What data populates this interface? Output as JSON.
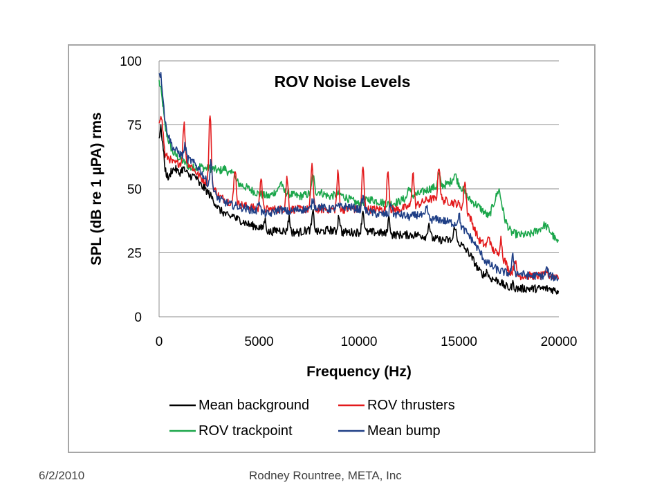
{
  "footer": {
    "date": "6/2/2010",
    "author": "Rodney Rountree,  META, Inc"
  },
  "colors": {
    "mean_background": "#000000",
    "rov_thrusters": "#e31a1c",
    "rov_trackpoint": "#1aa64a",
    "mean_bump": "#1f3f86",
    "gridline": "#8c8c8c",
    "frame": "#a6a6a6"
  },
  "chart_data": {
    "type": "line",
    "title": "ROV Noise Levels",
    "xlabel": "Frequency (Hz)",
    "ylabel": "SPL (dB re 1 µPA) rms",
    "xlim": [
      0,
      20000
    ],
    "ylim": [
      0,
      100
    ],
    "x_ticks": [
      0,
      5000,
      10000,
      15000,
      20000
    ],
    "y_ticks": [
      0,
      25,
      50,
      75,
      100
    ],
    "grid": "horizontal",
    "legend_position": "bottom",
    "series": [
      {
        "name": "Mean background",
        "color": "#000000",
        "points": [
          [
            0,
            70
          ],
          [
            100,
            74
          ],
          [
            200,
            66
          ],
          [
            300,
            58
          ],
          [
            400,
            55
          ],
          [
            500,
            54
          ],
          [
            600,
            57
          ],
          [
            800,
            58
          ],
          [
            1000,
            56
          ],
          [
            1200,
            58
          ],
          [
            1500,
            55
          ],
          [
            1800,
            55
          ],
          [
            2000,
            52
          ],
          [
            2300,
            50
          ],
          [
            2600,
            47
          ],
          [
            3000,
            42
          ],
          [
            3500,
            39
          ],
          [
            4000,
            38
          ],
          [
            4500,
            36
          ],
          [
            5000,
            35
          ],
          [
            5500,
            33
          ],
          [
            6000,
            34
          ],
          [
            6500,
            33
          ],
          [
            7000,
            33
          ],
          [
            7500,
            34
          ],
          [
            8000,
            33
          ],
          [
            8500,
            34
          ],
          [
            9000,
            33
          ],
          [
            9500,
            33
          ],
          [
            10000,
            33
          ],
          [
            10500,
            33
          ],
          [
            11000,
            33
          ],
          [
            11500,
            32
          ],
          [
            12000,
            32
          ],
          [
            12500,
            32
          ],
          [
            13000,
            32
          ],
          [
            13500,
            31
          ],
          [
            14000,
            30
          ],
          [
            14500,
            30
          ],
          [
            15000,
            29
          ],
          [
            15500,
            25
          ],
          [
            15800,
            21
          ],
          [
            16000,
            18
          ],
          [
            16300,
            16
          ],
          [
            16600,
            15
          ],
          [
            17000,
            14
          ],
          [
            17300,
            12
          ],
          [
            17600,
            11
          ],
          [
            18000,
            11
          ],
          [
            18500,
            11
          ],
          [
            19000,
            11
          ],
          [
            19500,
            11
          ],
          [
            20000,
            10
          ]
        ],
        "peaks": [
          [
            3700,
            40
          ],
          [
            5300,
            38
          ],
          [
            6500,
            39
          ],
          [
            7700,
            41
          ],
          [
            9000,
            40
          ],
          [
            10200,
            42
          ],
          [
            11500,
            39
          ],
          [
            13500,
            37
          ],
          [
            14800,
            36
          ],
          [
            16400,
            18
          ],
          [
            17700,
            13
          ]
        ]
      },
      {
        "name": "ROV thrusters",
        "color": "#e31a1c",
        "points": [
          [
            0,
            76
          ],
          [
            100,
            80
          ],
          [
            200,
            72
          ],
          [
            300,
            63
          ],
          [
            500,
            62
          ],
          [
            700,
            60
          ],
          [
            1000,
            60
          ],
          [
            1300,
            61
          ],
          [
            1600,
            59
          ],
          [
            2000,
            55
          ],
          [
            2300,
            53
          ],
          [
            2600,
            52
          ],
          [
            3000,
            47
          ],
          [
            3500,
            45
          ],
          [
            4000,
            44
          ],
          [
            4500,
            43
          ],
          [
            5000,
            42
          ],
          [
            5500,
            42
          ],
          [
            6000,
            42
          ],
          [
            6500,
            42
          ],
          [
            7000,
            42
          ],
          [
            7500,
            42
          ],
          [
            8000,
            42
          ],
          [
            8500,
            42
          ],
          [
            9000,
            42
          ],
          [
            9500,
            42
          ],
          [
            10000,
            42
          ],
          [
            10500,
            42
          ],
          [
            11000,
            42
          ],
          [
            11500,
            42
          ],
          [
            12000,
            42
          ],
          [
            12500,
            43
          ],
          [
            13000,
            44
          ],
          [
            13500,
            46
          ],
          [
            14000,
            46
          ],
          [
            14500,
            45
          ],
          [
            15000,
            44
          ],
          [
            15500,
            40
          ],
          [
            16000,
            30
          ],
          [
            16300,
            28
          ],
          [
            16600,
            27
          ],
          [
            17000,
            24
          ],
          [
            17300,
            22
          ],
          [
            17500,
            18
          ],
          [
            18000,
            16
          ],
          [
            18500,
            16
          ],
          [
            19000,
            16
          ],
          [
            19500,
            16
          ],
          [
            20000,
            16
          ]
        ],
        "peaks": [
          [
            1250,
            76
          ],
          [
            2550,
            81
          ],
          [
            3800,
            59
          ],
          [
            5100,
            56
          ],
          [
            6400,
            55
          ],
          [
            7650,
            61
          ],
          [
            8950,
            57
          ],
          [
            10200,
            59
          ],
          [
            11450,
            58
          ],
          [
            12700,
            57
          ],
          [
            14000,
            60
          ],
          [
            15300,
            54
          ],
          [
            16500,
            32
          ],
          [
            17100,
            31
          ],
          [
            17800,
            23
          ],
          [
            19400,
            18
          ]
        ]
      },
      {
        "name": "ROV trackpoint",
        "color": "#1aa64a",
        "points": [
          [
            0,
            92
          ],
          [
            100,
            88
          ],
          [
            200,
            82
          ],
          [
            300,
            74
          ],
          [
            500,
            68
          ],
          [
            700,
            64
          ],
          [
            1000,
            62
          ],
          [
            1300,
            60
          ],
          [
            1600,
            58
          ],
          [
            2000,
            59
          ],
          [
            2300,
            58
          ],
          [
            2600,
            58
          ],
          [
            3000,
            57
          ],
          [
            3300,
            58
          ],
          [
            3600,
            55
          ],
          [
            4000,
            52
          ],
          [
            4500,
            50
          ],
          [
            5000,
            48
          ],
          [
            5500,
            47
          ],
          [
            6000,
            50
          ],
          [
            6500,
            48
          ],
          [
            7000,
            47
          ],
          [
            7500,
            48
          ],
          [
            8000,
            49
          ],
          [
            8500,
            47
          ],
          [
            9000,
            48
          ],
          [
            9500,
            46
          ],
          [
            10000,
            44
          ],
          [
            10500,
            46
          ],
          [
            11000,
            45
          ],
          [
            11500,
            44
          ],
          [
            12000,
            45
          ],
          [
            12500,
            47
          ],
          [
            13000,
            48
          ],
          [
            13500,
            50
          ],
          [
            14000,
            51
          ],
          [
            14500,
            52
          ],
          [
            14800,
            55
          ],
          [
            15000,
            52
          ],
          [
            15500,
            46
          ],
          [
            16000,
            43
          ],
          [
            16500,
            39
          ],
          [
            17000,
            50
          ],
          [
            17300,
            38
          ],
          [
            17600,
            33
          ],
          [
            18000,
            32
          ],
          [
            18500,
            32
          ],
          [
            19000,
            34
          ],
          [
            19300,
            36
          ],
          [
            19600,
            33
          ],
          [
            20000,
            28
          ]
        ],
        "peaks": [
          [
            3700,
            58
          ],
          [
            6100,
            53
          ],
          [
            7700,
            56
          ],
          [
            12500,
            51
          ],
          [
            14000,
            56
          ],
          [
            14800,
            56
          ]
        ]
      },
      {
        "name": "Mean bump",
        "color": "#1f3f86",
        "points": [
          [
            0,
            96
          ],
          [
            100,
            94
          ],
          [
            200,
            86
          ],
          [
            300,
            76
          ],
          [
            500,
            70
          ],
          [
            700,
            66
          ],
          [
            1000,
            64
          ],
          [
            1300,
            62
          ],
          [
            1600,
            61
          ],
          [
            2000,
            58
          ],
          [
            2300,
            54
          ],
          [
            2600,
            50
          ],
          [
            3000,
            46
          ],
          [
            3500,
            44
          ],
          [
            4000,
            43
          ],
          [
            4500,
            42
          ],
          [
            5000,
            41
          ],
          [
            5500,
            40
          ],
          [
            6000,
            42
          ],
          [
            6500,
            41
          ],
          [
            7000,
            42
          ],
          [
            7500,
            42
          ],
          [
            8000,
            43
          ],
          [
            8500,
            42
          ],
          [
            9000,
            43
          ],
          [
            9500,
            43
          ],
          [
            10000,
            42
          ],
          [
            10500,
            41
          ],
          [
            11000,
            40
          ],
          [
            11500,
            40
          ],
          [
            12000,
            40
          ],
          [
            12500,
            39
          ],
          [
            13000,
            40
          ],
          [
            13500,
            38
          ],
          [
            14000,
            38
          ],
          [
            14500,
            37
          ],
          [
            15000,
            36
          ],
          [
            15500,
            32
          ],
          [
            16000,
            26
          ],
          [
            16300,
            22
          ],
          [
            16600,
            20
          ],
          [
            17000,
            18
          ],
          [
            17500,
            17
          ],
          [
            18000,
            17
          ],
          [
            18500,
            16
          ],
          [
            19000,
            16
          ],
          [
            19500,
            16
          ],
          [
            20000,
            15
          ]
        ],
        "peaks": [
          [
            1300,
            67
          ],
          [
            2600,
            61
          ],
          [
            5000,
            46
          ],
          [
            7700,
            46
          ],
          [
            10200,
            47
          ],
          [
            11600,
            45
          ],
          [
            13400,
            43
          ],
          [
            15000,
            40
          ],
          [
            17700,
            24
          ],
          [
            19400,
            19
          ]
        ]
      }
    ]
  }
}
